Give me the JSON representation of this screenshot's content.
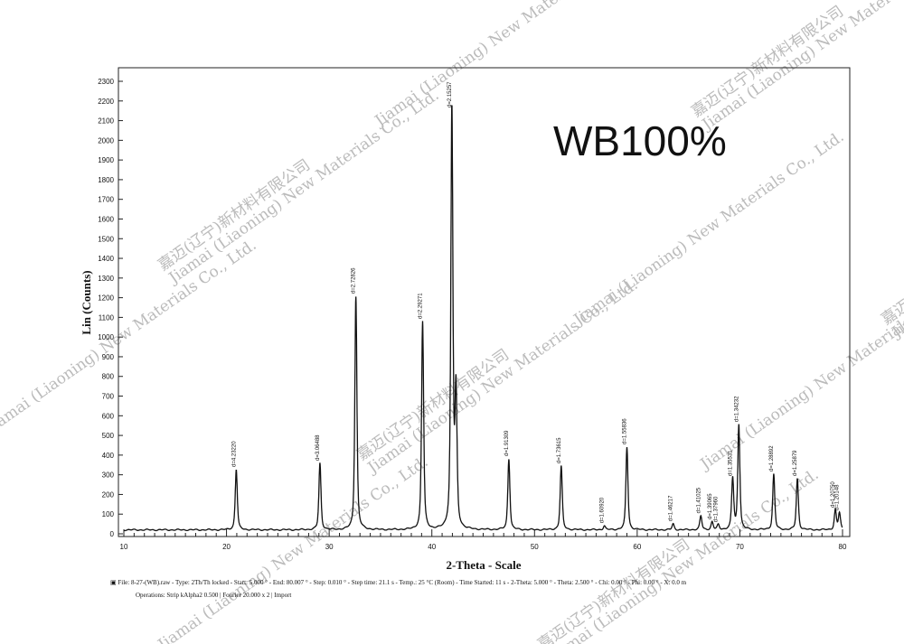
{
  "chart_data": {
    "type": "line",
    "title": "WB100%",
    "xlabel": "2-Theta - Scale",
    "ylabel": "Lin (Counts)",
    "xlim": [
      10,
      80
    ],
    "ylim": [
      0,
      2300
    ],
    "x_ticks": [
      10,
      20,
      30,
      40,
      50,
      60,
      70,
      80
    ],
    "y_ticks": [
      0,
      100,
      200,
      300,
      400,
      500,
      600,
      700,
      800,
      900,
      1000,
      1100,
      1200,
      1300,
      1400,
      1500,
      1600,
      1700,
      1800,
      1900,
      2000,
      2100,
      2200,
      2300
    ],
    "grid": false,
    "baseline": 20,
    "peaks": [
      {
        "two_theta": 20.95,
        "counts": 326,
        "label": "d=4.23220"
      },
      {
        "two_theta": 29.1,
        "counts": 358,
        "label": "d=3.06488"
      },
      {
        "two_theta": 32.6,
        "counts": 1207,
        "label": "d=2.72826"
      },
      {
        "two_theta": 39.1,
        "counts": 1079,
        "label": "d=2.29271"
      },
      {
        "two_theta": 41.95,
        "counts": 2153,
        "label": "d=2.15257"
      },
      {
        "two_theta": 42.35,
        "counts": 700,
        "label": ""
      },
      {
        "two_theta": 47.5,
        "counts": 381,
        "label": "d=1.91309"
      },
      {
        "two_theta": 52.6,
        "counts": 344,
        "label": "d=1.73615"
      },
      {
        "two_theta": 56.8,
        "counts": 40,
        "label": "d=1.60920"
      },
      {
        "two_theta": 59.0,
        "counts": 441,
        "label": "d=1.55836"
      },
      {
        "two_theta": 63.5,
        "counts": 50,
        "label": "d=1.46217"
      },
      {
        "two_theta": 66.2,
        "counts": 90,
        "label": "d=1.41025"
      },
      {
        "two_theta": 67.3,
        "counts": 60,
        "label": "d=1.39065"
      },
      {
        "two_theta": 67.9,
        "counts": 45,
        "label": "d=1.37960"
      },
      {
        "two_theta": 69.3,
        "counts": 280,
        "label": "d=1.35531"
      },
      {
        "two_theta": 69.9,
        "counts": 555,
        "label": "d=1.34232"
      },
      {
        "two_theta": 73.3,
        "counts": 303,
        "label": "d=1.28892"
      },
      {
        "two_theta": 75.6,
        "counts": 280,
        "label": "d=1.25879"
      },
      {
        "two_theta": 79.3,
        "counts": 120,
        "label": "d=1.20750"
      },
      {
        "two_theta": 79.7,
        "counts": 105,
        "label": "d=1.20148"
      }
    ]
  },
  "footer": {
    "line1": "File: 8-27-(WB).raw - Type: 2Th/Th locked - Start: 5.000 ° - End: 80.007 ° - Step: 0.010 ° - Step time: 21.1 s - Temp.: 25 °C (Room) - Time Started: 11 s - 2-Theta: 5.000 ° - Theta: 2.500 ° - Chi: 0.00 ° - Phi: 0.00 ° - X: 0.0 m",
    "line2": "Operations: Strip kAlpha2 0.500 | Fourier 20.000 x 2 | Import"
  },
  "watermark": {
    "cn": "嘉迈(辽宁)新材料有限公司",
    "en": "Jiamai (Liaoning) New Materials Co., Ltd."
  }
}
